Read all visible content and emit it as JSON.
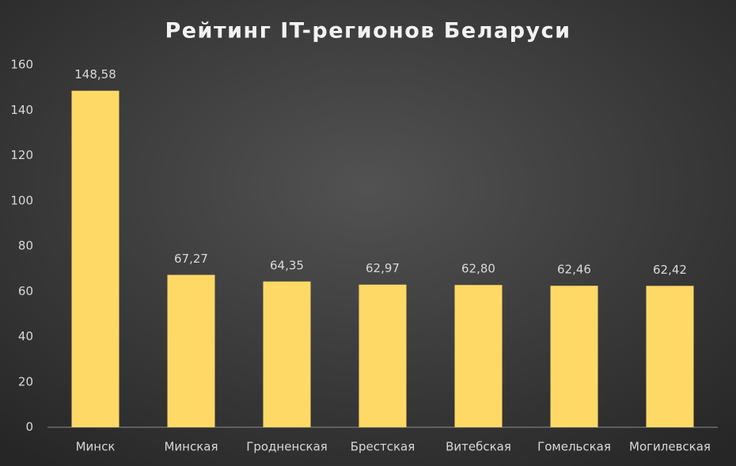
{
  "chart_data": {
    "type": "bar",
    "title": "Рейтинг IT-регионов Беларуси",
    "categories": [
      "Минск",
      "Минская",
      "Гродненская",
      "Брестская",
      "Витебская",
      "Гомельская",
      "Могилевская"
    ],
    "values": [
      148.58,
      67.27,
      64.35,
      62.97,
      62.8,
      62.46,
      62.42
    ],
    "value_labels": [
      "148,58",
      "67,27",
      "64,35",
      "62,97",
      "62,80",
      "62,46",
      "62,42"
    ],
    "color": "#ffd966",
    "ylim": [
      0,
      160
    ],
    "yticks": [
      0,
      20,
      40,
      60,
      80,
      100,
      120,
      140,
      160
    ],
    "grid": false
  }
}
